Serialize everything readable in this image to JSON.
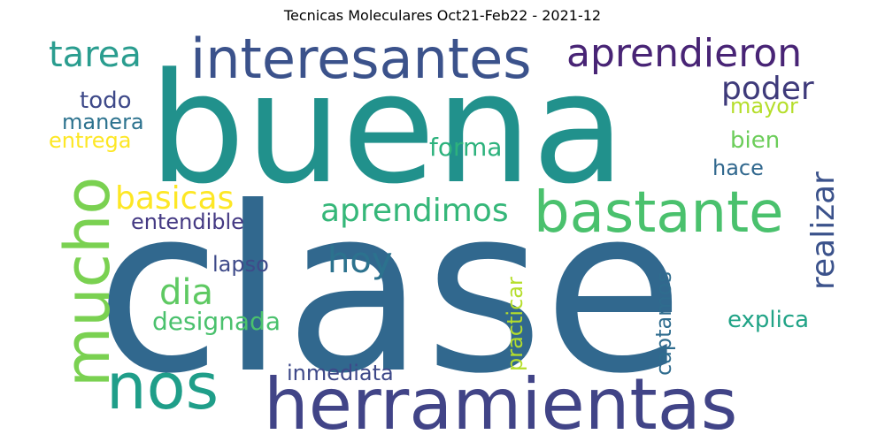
{
  "title": "Tecnicas Moleculares Oct21-Feb22 - 2021-12",
  "words": [
    {
      "text": "clase",
      "color": "#31688e"
    },
    {
      "text": "buena",
      "color": "#21918c"
    },
    {
      "text": "herramientas",
      "color": "#414487"
    },
    {
      "text": "interesantes",
      "color": "#3b528b"
    },
    {
      "text": "mucho",
      "color": "#7ad151"
    },
    {
      "text": "nos",
      "color": "#1f9e89"
    },
    {
      "text": "bastante",
      "color": "#4ac16d"
    },
    {
      "text": "aprendieron",
      "color": "#482475"
    },
    {
      "text": "tarea",
      "color": "#2a9d8f"
    },
    {
      "text": "poder",
      "color": "#3e3a7a"
    },
    {
      "text": "aprendimos",
      "color": "#35b779"
    },
    {
      "text": "hoy",
      "color": "#2c728e"
    },
    {
      "text": "realizar",
      "color": "#3b528b"
    },
    {
      "text": "basicas",
      "color": "#fde725"
    },
    {
      "text": "dia",
      "color": "#5ec962"
    },
    {
      "text": "designada",
      "color": "#4ac16d"
    },
    {
      "text": "todo",
      "color": "#3e4989"
    },
    {
      "text": "manera",
      "color": "#2c728e"
    },
    {
      "text": "entrega",
      "color": "#fde725"
    },
    {
      "text": "forma",
      "color": "#2db27d"
    },
    {
      "text": "mayor",
      "color": "#b5de2b"
    },
    {
      "text": "bien",
      "color": "#6ccd5a"
    },
    {
      "text": "hace",
      "color": "#31688e"
    },
    {
      "text": "entendible",
      "color": "#443983"
    },
    {
      "text": "lapso",
      "color": "#3e4a89"
    },
    {
      "text": "practicar",
      "color": "#b5de2b"
    },
    {
      "text": "captamos",
      "color": "#2f6c8e"
    },
    {
      "text": "explica",
      "color": "#20a386"
    },
    {
      "text": "inmediata",
      "color": "#3e4989"
    }
  ]
}
